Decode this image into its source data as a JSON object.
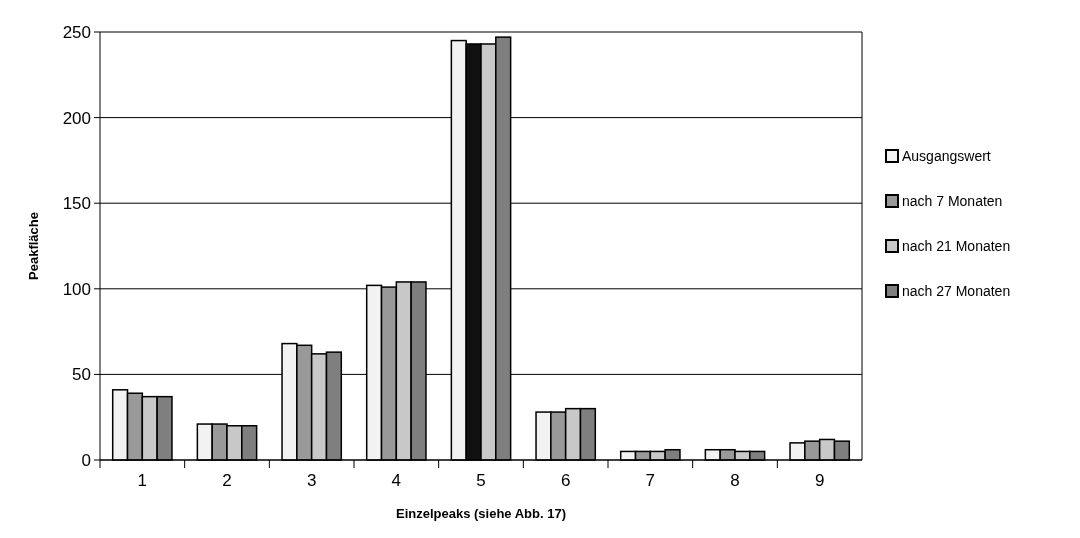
{
  "chart_data": {
    "type": "bar",
    "xlabel": "Einzelpeaks (siehe Abb. 17)",
    "ylabel": "Peakfläche",
    "categories": [
      "1",
      "2",
      "3",
      "4",
      "5",
      "6",
      "7",
      "8",
      "9"
    ],
    "series": [
      {
        "name": "Ausgangswert",
        "color": "#f2f2f2",
        "values": [
          41,
          21,
          68,
          102,
          245,
          28,
          5,
          6,
          10
        ]
      },
      {
        "name": "nach 7 Monaten",
        "color": "#999999",
        "colors": [
          "#999999",
          "#999999",
          "#999999",
          "#999999",
          "#111111",
          "#999999",
          "#999999",
          "#999999",
          "#999999"
        ],
        "values": [
          39,
          21,
          67,
          101,
          243,
          28,
          5,
          6,
          11
        ]
      },
      {
        "name": "nach 21 Monaten",
        "color": "#c8c8c8",
        "values": [
          37,
          20,
          62,
          104,
          243,
          30,
          5,
          5,
          12
        ]
      },
      {
        "name": "nach 27 Monaten",
        "color": "#7f7f7f",
        "values": [
          37,
          20,
          63,
          104,
          247,
          30,
          6,
          5,
          11
        ]
      }
    ],
    "ylim": [
      0,
      250
    ],
    "yticks": [
      0,
      50,
      100,
      150,
      200,
      250
    ],
    "grid": "y",
    "legend": "right"
  }
}
